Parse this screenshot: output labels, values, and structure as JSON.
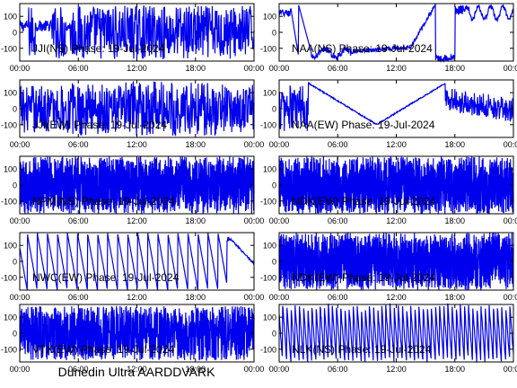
{
  "colors": {
    "trace": "#0000ee",
    "footer": "#cc0000"
  },
  "footer_text": "Dunedin Ultra AARDDVARK",
  "chart_data": [
    {
      "type": "line",
      "title": "JJI(NS) Phase: 19-Jul-2024",
      "xticklabels": [
        "00:00",
        "06:00",
        "12:00",
        "18:00",
        "00:00"
      ],
      "yticklabels": [
        "100",
        "0",
        "-100"
      ],
      "xlim": [
        0,
        24
      ],
      "ylim": [
        -180,
        180
      ],
      "series": [
        {
          "x": [],
          "y": []
        }
      ]
    },
    {
      "type": "line",
      "title": "NAA(NS) Phase: 19-Jul-2024",
      "xticklabels": [
        "00:00",
        "06:00",
        "12:00",
        "18:00",
        "00:00"
      ],
      "yticklabels": [
        "100",
        "0",
        "-100"
      ],
      "xlim": [
        0,
        24
      ],
      "ylim": [
        -180,
        180
      ],
      "series": [
        {
          "x": [],
          "y": []
        }
      ]
    },
    {
      "type": "line",
      "title": "JJI(EW) Phase: 19-Jul-2024",
      "xticklabels": [
        "00:00",
        "06:00",
        "12:00",
        "18:00",
        "00:00"
      ],
      "yticklabels": [
        "100",
        "0",
        "-100"
      ],
      "xlim": [
        0,
        24
      ],
      "ylim": [
        -180,
        180
      ],
      "series": [
        {
          "x": [],
          "y": []
        }
      ]
    },
    {
      "type": "line",
      "title": "NAA(EW) Phase: 19-Jul-2024",
      "xticklabels": [
        "00:00",
        "06:00",
        "12:00",
        "18:00",
        "00:00"
      ],
      "yticklabels": [
        "100",
        "0",
        "-100"
      ],
      "xlim": [
        0,
        24
      ],
      "ylim": [
        -180,
        180
      ],
      "series": [
        {
          "x": [],
          "y": []
        }
      ]
    },
    {
      "type": "line",
      "title": "NPM(NS) Phase: 19-Jul-2024",
      "xticklabels": [
        "00:00",
        "06:00",
        "12:00",
        "18:00",
        "00:00"
      ],
      "yticklabels": [
        "100",
        "0",
        "-100"
      ],
      "xlim": [
        0,
        24
      ],
      "ylim": [
        -180,
        180
      ],
      "series": [
        {
          "x": [],
          "y": []
        }
      ]
    },
    {
      "type": "line",
      "title": "NDK(EW) Phase: 19-Jul-2024",
      "xticklabels": [
        "00:00",
        "06:00",
        "12:00",
        "18:00",
        "00:00"
      ],
      "yticklabels": [
        "100",
        "0",
        "-100"
      ],
      "xlim": [
        0,
        24
      ],
      "ylim": [
        -180,
        180
      ],
      "series": [
        {
          "x": [],
          "y": []
        }
      ]
    },
    {
      "type": "line",
      "title": "NWC(EW) Phase: 19-Jul-2024",
      "xticklabels": [
        "00:00",
        "06:00",
        "12:00",
        "18:00",
        "00:00"
      ],
      "yticklabels": [
        "100",
        "0",
        "-100"
      ],
      "xlim": [
        0,
        24
      ],
      "ylim": [
        -180,
        180
      ],
      "series": [
        {
          "x": [],
          "y": []
        }
      ]
    },
    {
      "type": "line",
      "title": "NDK(EW) Phase: 19-Jul-2024",
      "xticklabels": [
        "00:00",
        "06:00",
        "12:00",
        "18:00",
        "00:00"
      ],
      "yticklabels": [
        "100",
        "0",
        "-100"
      ],
      "xlim": [
        0,
        24
      ],
      "ylim": [
        -180,
        180
      ],
      "series": [
        {
          "x": [],
          "y": []
        }
      ]
    },
    {
      "type": "line",
      "title": "VTX(EW) Phase: 19-Jul-2024",
      "xticklabels": [
        "00:00",
        "06:00",
        "12:00",
        "18:00",
        "00:00"
      ],
      "yticklabels": [
        "100",
        "0",
        "-100"
      ],
      "xlim": [
        0,
        24
      ],
      "ylim": [
        -180,
        180
      ],
      "series": [
        {
          "x": [],
          "y": []
        }
      ]
    },
    {
      "type": "line",
      "title": "NLK(NS) Phase: 19-Jul-2024",
      "xticklabels": [
        "00:00",
        "06:00",
        "12:00",
        "18:00",
        "00:00"
      ],
      "yticklabels": [
        "100",
        "0",
        "-100"
      ],
      "xlim": [
        0,
        24
      ],
      "ylim": [
        -180,
        180
      ],
      "series": [
        {
          "x": [],
          "y": []
        }
      ]
    }
  ]
}
